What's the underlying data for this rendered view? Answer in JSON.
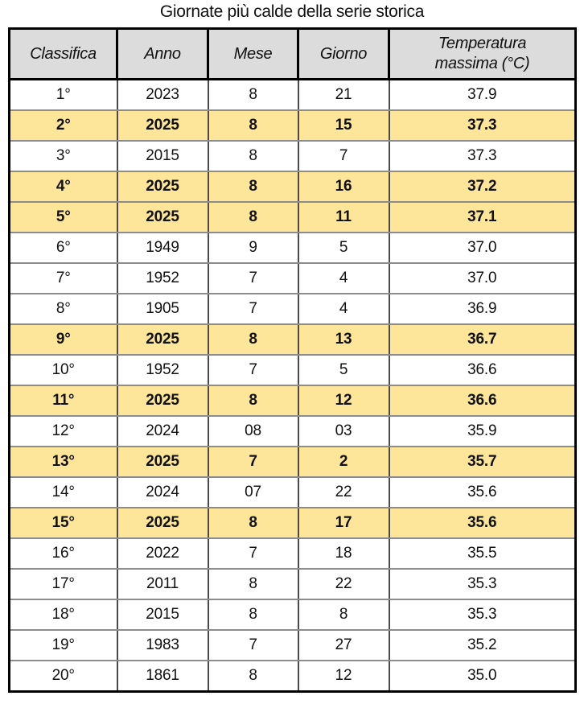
{
  "title": "Giornate più calde della serie storica",
  "colors": {
    "highlight_bg": "#fde699",
    "header_bg": "#dcdcdc",
    "outer_border": "#000000",
    "inner_vertical_border": "#4a4a4a",
    "inner_horizontal_border": "#8c8c8c",
    "text": "#111111"
  },
  "chart_data": {
    "type": "table",
    "title": "Giornate più calde della serie storica",
    "columns": [
      "Classifica",
      "Anno",
      "Mese",
      "Giorno",
      "Temperatura massima (°C)"
    ],
    "highlight_meaning": "rows with Anno 2025 are shown bold on yellow background",
    "rows": [
      {
        "cells": [
          "1°",
          "2023",
          "8",
          "21",
          "37.9"
        ],
        "highlighted": false
      },
      {
        "cells": [
          "2°",
          "2025",
          "8",
          "15",
          "37.3"
        ],
        "highlighted": true
      },
      {
        "cells": [
          "3°",
          "2015",
          "8",
          "7",
          "37.3"
        ],
        "highlighted": false
      },
      {
        "cells": [
          "4°",
          "2025",
          "8",
          "16",
          "37.2"
        ],
        "highlighted": true
      },
      {
        "cells": [
          "5°",
          "2025",
          "8",
          "11",
          "37.1"
        ],
        "highlighted": true
      },
      {
        "cells": [
          "6°",
          "1949",
          "9",
          "5",
          "37.0"
        ],
        "highlighted": false
      },
      {
        "cells": [
          "7°",
          "1952",
          "7",
          "4",
          "37.0"
        ],
        "highlighted": false
      },
      {
        "cells": [
          "8°",
          "1905",
          "7",
          "4",
          "36.9"
        ],
        "highlighted": false
      },
      {
        "cells": [
          "9°",
          "2025",
          "8",
          "13",
          "36.7"
        ],
        "highlighted": true
      },
      {
        "cells": [
          "10°",
          "1952",
          "7",
          "5",
          "36.6"
        ],
        "highlighted": false
      },
      {
        "cells": [
          "11°",
          "2025",
          "8",
          "12",
          "36.6"
        ],
        "highlighted": true
      },
      {
        "cells": [
          "12°",
          "2024",
          "08",
          "03",
          "35.9"
        ],
        "highlighted": false
      },
      {
        "cells": [
          "13°",
          "2025",
          "7",
          "2",
          "35.7"
        ],
        "highlighted": true
      },
      {
        "cells": [
          "14°",
          "2024",
          "07",
          "22",
          "35.6"
        ],
        "highlighted": false
      },
      {
        "cells": [
          "15°",
          "2025",
          "8",
          "17",
          "35.6"
        ],
        "highlighted": true
      },
      {
        "cells": [
          "16°",
          "2022",
          "7",
          "18",
          "35.5"
        ],
        "highlighted": false
      },
      {
        "cells": [
          "17°",
          "2011",
          "8",
          "22",
          "35.3"
        ],
        "highlighted": false
      },
      {
        "cells": [
          "18°",
          "2015",
          "8",
          "8",
          "35.3"
        ],
        "highlighted": false
      },
      {
        "cells": [
          "19°",
          "1983",
          "7",
          "27",
          "35.2"
        ],
        "highlighted": false
      },
      {
        "cells": [
          "20°",
          "1861",
          "8",
          "12",
          "35.0"
        ],
        "highlighted": false
      }
    ]
  }
}
